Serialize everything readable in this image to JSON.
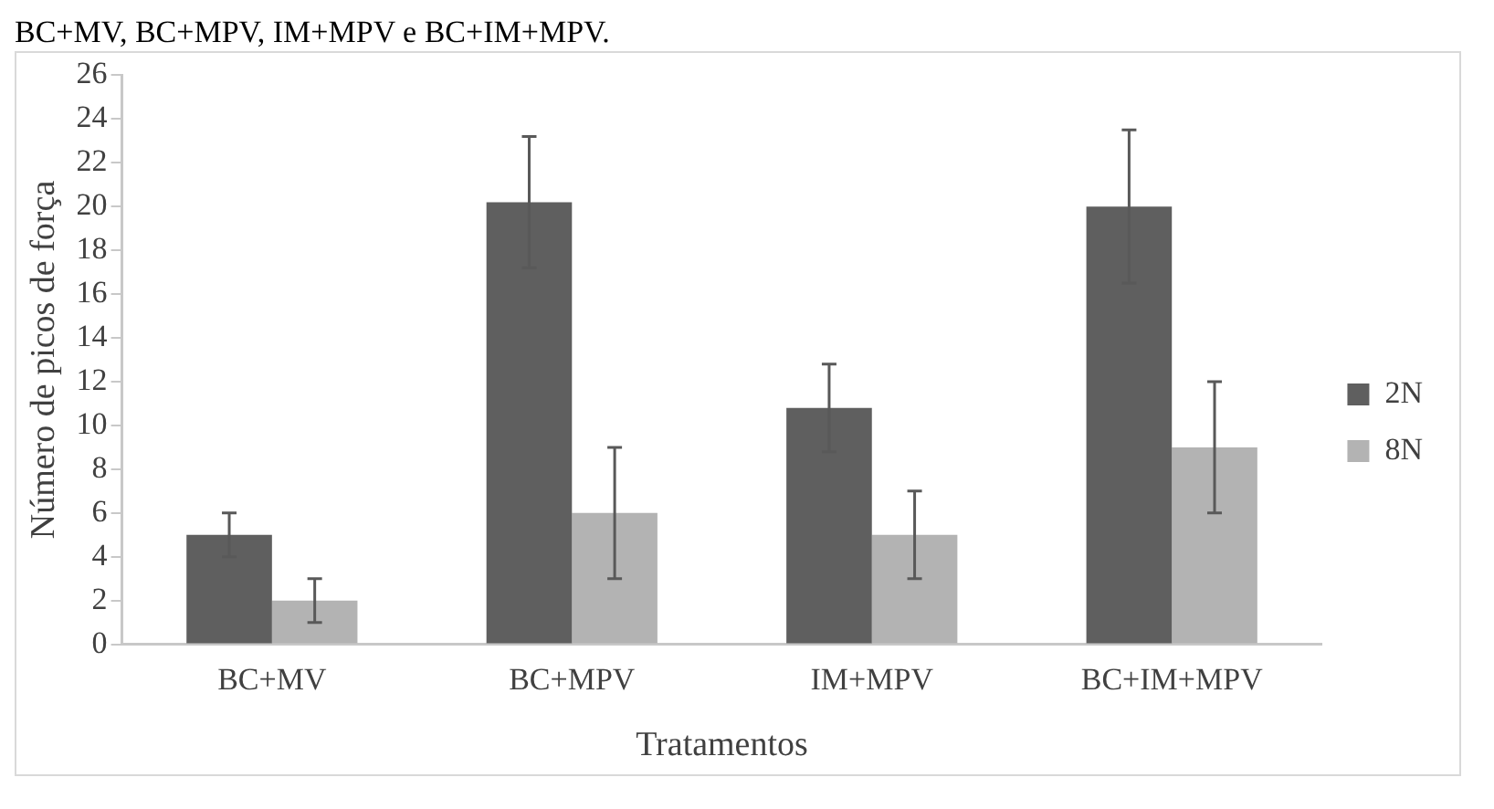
{
  "chart_data": {
    "type": "bar",
    "xlabel": "Tratamentos",
    "ylabel": "Número de picos de força",
    "annotations": [
      "BC+MV, BC+MPV, IM+MPV e BC+IM+MPV."
    ],
    "categories": [
      "BC+MV",
      "BC+MPV",
      "IM+MPV",
      "BC+IM+MPV"
    ],
    "series": [
      {
        "name": "2N",
        "color": "#5f5f5f",
        "values": [
          5,
          20.2,
          10.8,
          20
        ],
        "errors": [
          1,
          3,
          2,
          3.5
        ]
      },
      {
        "name": "8N",
        "color": "#b3b3b3",
        "values": [
          2,
          6,
          5,
          9
        ],
        "errors": [
          1,
          3,
          2,
          3
        ]
      }
    ],
    "ylim": [
      0,
      26
    ],
    "yticks": [
      0,
      2,
      4,
      6,
      8,
      10,
      12,
      14,
      16,
      18,
      20,
      22,
      24,
      26
    ],
    "grid": false,
    "legend": "right"
  }
}
